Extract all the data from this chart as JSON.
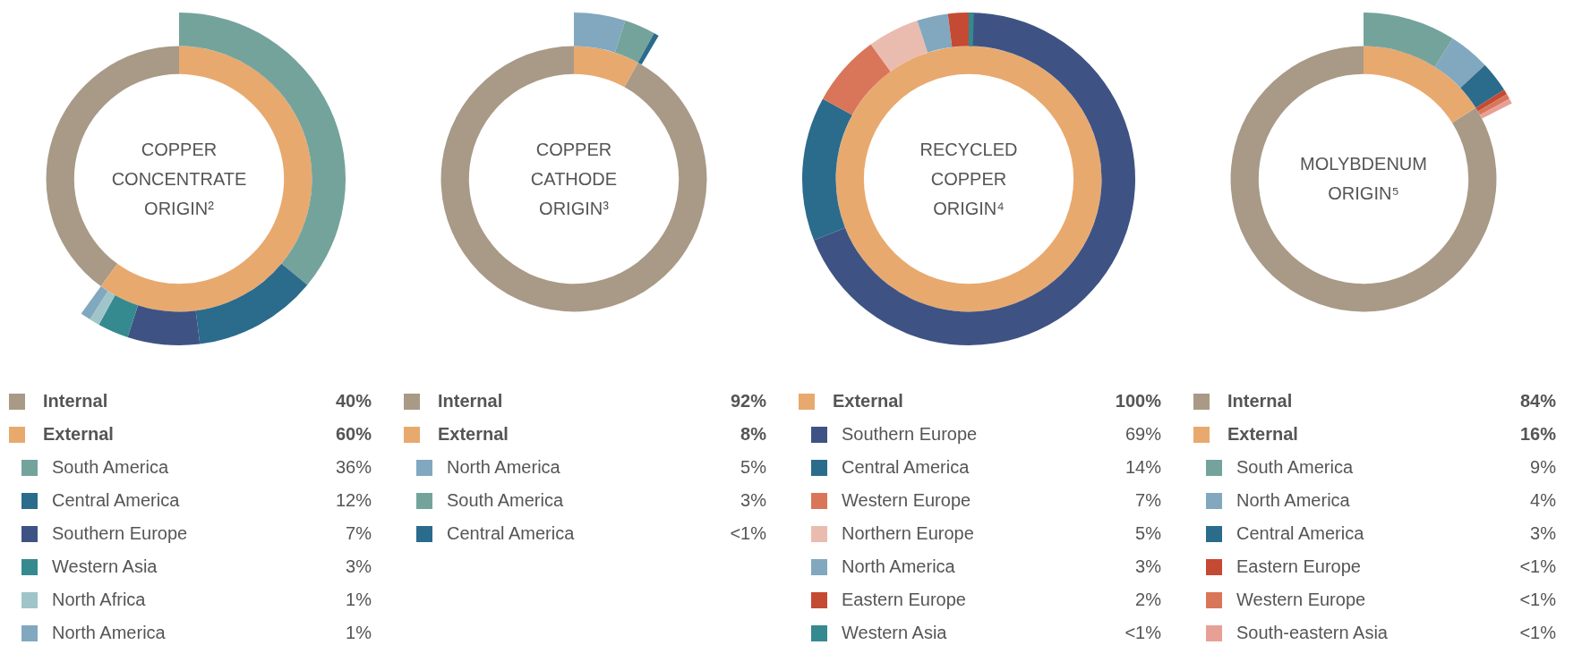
{
  "chart_data": [
    {
      "type": "donut",
      "title": "COPPER CONCENTRATE ORIGIN²",
      "legend": "bottom",
      "categories": [
        "Internal",
        "External",
        "South America",
        "Central America",
        "Southern Europe",
        "Western Asia",
        "North Africa",
        "North America"
      ],
      "colors": [
        "#a89a87",
        "#e8a96f",
        "#74a39c",
        "#2b6b8c",
        "#3e5383",
        "#358a8f",
        "#9fc5c8",
        "#81a8bf"
      ],
      "series": [
        {
          "values": [
            40,
            60,
            null,
            null,
            null,
            null,
            null,
            null
          ],
          "value_labels": [
            "40%",
            "60%",
            null,
            null,
            null,
            null,
            null,
            null
          ]
        },
        {
          "values": [
            null,
            null,
            36,
            12,
            7,
            3,
            1,
            1
          ],
          "value_labels": [
            null,
            null,
            "36%",
            "12%",
            "7%",
            "3%",
            "1%",
            "1%"
          ]
        }
      ]
    },
    {
      "type": "donut",
      "title": "COPPER CATHODE ORIGIN³",
      "legend": "bottom",
      "categories": [
        "Internal",
        "External",
        "North America",
        "South America",
        "Central America"
      ],
      "colors": [
        "#a89a87",
        "#e8a96f",
        "#81a8bf",
        "#74a39c",
        "#2b6b8c"
      ],
      "series": [
        {
          "values": [
            92,
            8,
            null,
            null,
            null
          ],
          "value_labels": [
            "92%",
            "8%",
            null,
            null,
            null
          ]
        },
        {
          "values": [
            null,
            null,
            5,
            3,
            0.5
          ],
          "value_labels": [
            null,
            null,
            "5%",
            "3%",
            "<1%"
          ]
        }
      ]
    },
    {
      "type": "donut",
      "title": "RECYCLED COPPER ORIGIN⁴",
      "legend": "bottom",
      "categories": [
        "External",
        "Southern Europe",
        "Central America",
        "Western Europe",
        "Northern Europe",
        "North America",
        "Eastern Europe",
        "Western Asia"
      ],
      "colors": [
        "#e8a96f",
        "#3e5383",
        "#2b6b8c",
        "#d9765a",
        "#eabcaf",
        "#81a8bf",
        "#c44a33",
        "#358a8f"
      ],
      "series": [
        {
          "values": [
            100,
            null,
            null,
            null,
            null,
            null,
            null,
            null
          ],
          "value_labels": [
            "100%",
            null,
            null,
            null,
            null,
            null,
            null,
            null
          ]
        },
        {
          "values": [
            null,
            69,
            14,
            7,
            5,
            3,
            2,
            0.5
          ],
          "value_labels": [
            null,
            "69%",
            "14%",
            "7%",
            "5%",
            "3%",
            "2%",
            "<1%"
          ]
        }
      ]
    },
    {
      "type": "donut",
      "title": "MOLYBDENUM ORIGIN⁵",
      "legend": "bottom",
      "categories": [
        "Internal",
        "External",
        "South America",
        "North America",
        "Central America",
        "Eastern Europe",
        "Western Europe",
        "South-eastern Asia"
      ],
      "colors": [
        "#a89a87",
        "#e8a96f",
        "#74a39c",
        "#81a8bf",
        "#2b6b8c",
        "#c44a33",
        "#d9765a",
        "#e8a096"
      ],
      "series": [
        {
          "values": [
            84,
            16,
            null,
            null,
            null,
            null,
            null,
            null
          ],
          "value_labels": [
            "84%",
            "16%",
            null,
            null,
            null,
            null,
            null,
            null
          ]
        },
        {
          "values": [
            null,
            null,
            9,
            4,
            3,
            0.5,
            0.5,
            0.5
          ],
          "value_labels": [
            null,
            null,
            "9%",
            "4%",
            "3%",
            "<1%",
            "<1%",
            "<1%"
          ]
        }
      ]
    }
  ]
}
